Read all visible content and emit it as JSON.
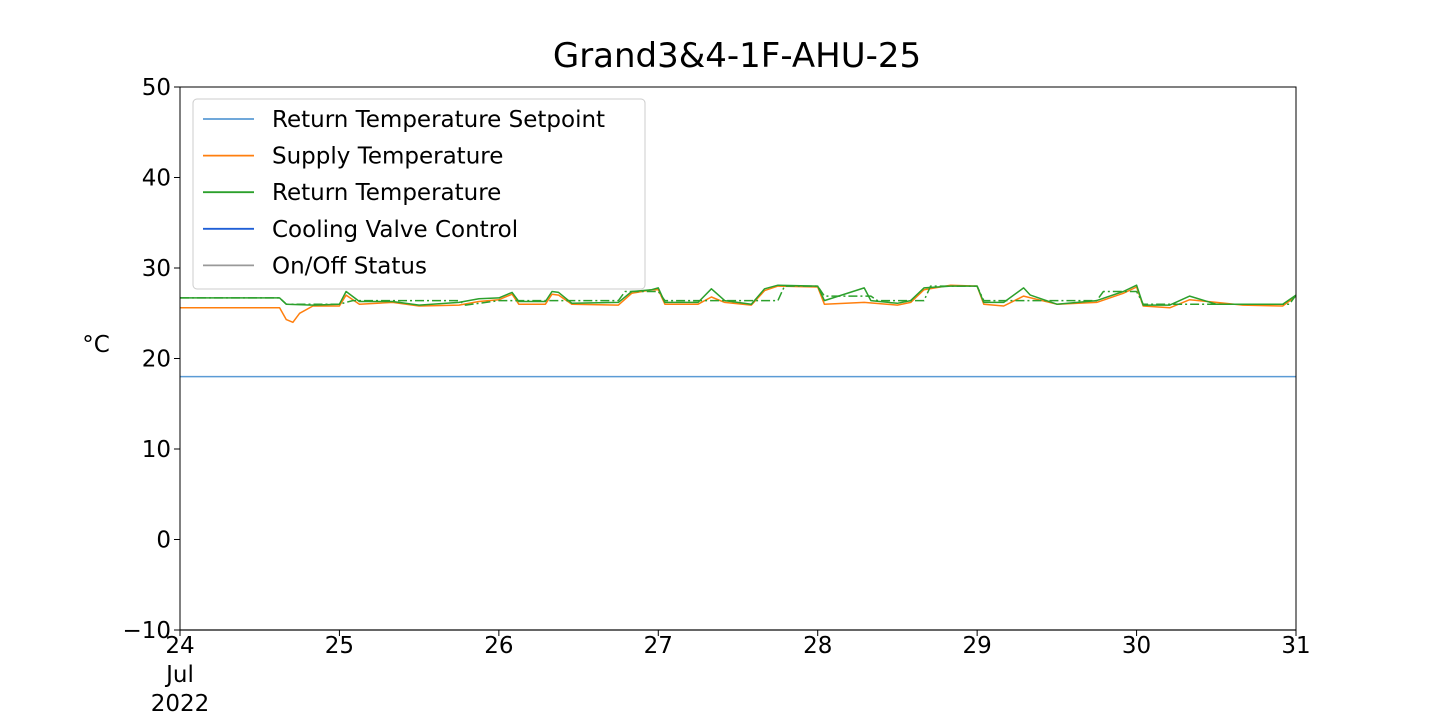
{
  "chart_data": {
    "type": "line",
    "title": "Grand3&4-1F-AHU-25",
    "ylabel": "°C",
    "xlabel": "",
    "ylim": [
      -10,
      50
    ],
    "xlim": [
      "2022-07-24",
      "2022-07-31"
    ],
    "grid": false,
    "legend_position": "top-left",
    "yticks": [
      {
        "value": -10,
        "label": "−10"
      },
      {
        "value": 0,
        "label": "0"
      },
      {
        "value": 10,
        "label": "10"
      },
      {
        "value": 20,
        "label": "20"
      },
      {
        "value": 30,
        "label": "30"
      },
      {
        "value": 40,
        "label": "40"
      },
      {
        "value": 50,
        "label": "50"
      }
    ],
    "xticks": [
      {
        "date": "2022-07-24",
        "day": "24",
        "month": "Jul",
        "year": "2022"
      },
      {
        "date": "2022-07-25",
        "day": "25"
      },
      {
        "date": "2022-07-26",
        "day": "26"
      },
      {
        "date": "2022-07-27",
        "day": "27"
      },
      {
        "date": "2022-07-28",
        "day": "28"
      },
      {
        "date": "2022-07-29",
        "day": "29"
      },
      {
        "date": "2022-07-30",
        "day": "30"
      },
      {
        "date": "2022-07-31",
        "day": "31"
      }
    ],
    "series": [
      {
        "name": "Return Temperature Setpoint",
        "color": "#5b9bd5",
        "style": "solid",
        "points": [
          [
            "2022-07-24 00:00",
            18.0
          ],
          [
            "2022-07-31 00:00",
            18.0
          ]
        ]
      },
      {
        "name": "Supply Temperature",
        "color": "#ff7f0e",
        "style": "solid",
        "points": [
          [
            "2022-07-24 00:00",
            25.6
          ],
          [
            "2022-07-24 15:00",
            25.6
          ],
          [
            "2022-07-24 16:00",
            24.3
          ],
          [
            "2022-07-24 17:00",
            24.0
          ],
          [
            "2022-07-24 18:00",
            25.0
          ],
          [
            "2022-07-24 20:00",
            25.8
          ],
          [
            "2022-07-25 00:00",
            25.8
          ],
          [
            "2022-07-25 01:00",
            27.0
          ],
          [
            "2022-07-25 03:00",
            26.0
          ],
          [
            "2022-07-25 08:00",
            26.2
          ],
          [
            "2022-07-25 12:00",
            25.8
          ],
          [
            "2022-07-25 18:00",
            25.9
          ],
          [
            "2022-07-25 21:00",
            26.3
          ],
          [
            "2022-07-26 00:00",
            26.5
          ],
          [
            "2022-07-26 02:00",
            27.1
          ],
          [
            "2022-07-26 03:00",
            26.0
          ],
          [
            "2022-07-26 07:00",
            26.0
          ],
          [
            "2022-07-26 08:00",
            27.1
          ],
          [
            "2022-07-26 09:00",
            27.0
          ],
          [
            "2022-07-26 11:00",
            26.0
          ],
          [
            "2022-07-26 18:00",
            25.9
          ],
          [
            "2022-07-26 20:00",
            27.2
          ],
          [
            "2022-07-26 23:00",
            27.6
          ],
          [
            "2022-07-27 00:00",
            27.6
          ],
          [
            "2022-07-27 01:00",
            26.0
          ],
          [
            "2022-07-27 06:00",
            26.0
          ],
          [
            "2022-07-27 08:00",
            26.8
          ],
          [
            "2022-07-27 10:00",
            26.2
          ],
          [
            "2022-07-27 14:00",
            25.9
          ],
          [
            "2022-07-27 16:00",
            27.5
          ],
          [
            "2022-07-27 18:00",
            28.0
          ],
          [
            "2022-07-28 00:00",
            27.9
          ],
          [
            "2022-07-28 01:00",
            26.0
          ],
          [
            "2022-07-28 07:00",
            26.2
          ],
          [
            "2022-07-28 12:00",
            25.9
          ],
          [
            "2022-07-28 14:00",
            26.2
          ],
          [
            "2022-07-28 16:00",
            27.6
          ],
          [
            "2022-07-28 20:00",
            28.1
          ],
          [
            "2022-07-29 00:00",
            28.0
          ],
          [
            "2022-07-29 01:00",
            26.0
          ],
          [
            "2022-07-29 04:00",
            25.8
          ],
          [
            "2022-07-29 07:00",
            26.9
          ],
          [
            "2022-07-29 12:00",
            26.0
          ],
          [
            "2022-07-29 18:00",
            26.2
          ],
          [
            "2022-07-29 22:00",
            27.2
          ],
          [
            "2022-07-30 00:00",
            27.9
          ],
          [
            "2022-07-30 01:00",
            25.8
          ],
          [
            "2022-07-30 05:00",
            25.6
          ],
          [
            "2022-07-30 08:00",
            26.5
          ],
          [
            "2022-07-30 12:00",
            26.2
          ],
          [
            "2022-07-30 16:00",
            25.9
          ],
          [
            "2022-07-30 22:00",
            25.8
          ],
          [
            "2022-07-31 00:00",
            26.9
          ]
        ]
      },
      {
        "name": "Return Temperature",
        "color": "#2ca02c",
        "style": "solid",
        "points": [
          [
            "2022-07-24 00:00",
            26.7
          ],
          [
            "2022-07-24 15:00",
            26.7
          ],
          [
            "2022-07-24 16:00",
            26.0
          ],
          [
            "2022-07-24 20:00",
            25.9
          ],
          [
            "2022-07-25 00:00",
            26.0
          ],
          [
            "2022-07-25 01:00",
            27.4
          ],
          [
            "2022-07-25 03:00",
            26.3
          ],
          [
            "2022-07-25 08:00",
            26.3
          ],
          [
            "2022-07-25 12:00",
            25.9
          ],
          [
            "2022-07-25 18:00",
            26.2
          ],
          [
            "2022-07-25 21:00",
            26.6
          ],
          [
            "2022-07-26 00:00",
            26.7
          ],
          [
            "2022-07-26 02:00",
            27.3
          ],
          [
            "2022-07-26 03:00",
            26.3
          ],
          [
            "2022-07-26 07:00",
            26.3
          ],
          [
            "2022-07-26 08:00",
            27.4
          ],
          [
            "2022-07-26 09:00",
            27.3
          ],
          [
            "2022-07-26 11:00",
            26.1
          ],
          [
            "2022-07-26 18:00",
            26.2
          ],
          [
            "2022-07-26 20:00",
            27.4
          ],
          [
            "2022-07-26 23:00",
            27.6
          ],
          [
            "2022-07-27 00:00",
            27.8
          ],
          [
            "2022-07-27 01:00",
            26.2
          ],
          [
            "2022-07-27 06:00",
            26.2
          ],
          [
            "2022-07-27 08:00",
            27.7
          ],
          [
            "2022-07-27 10:00",
            26.4
          ],
          [
            "2022-07-27 14:00",
            26.0
          ],
          [
            "2022-07-27 16:00",
            27.7
          ],
          [
            "2022-07-27 18:00",
            28.1
          ],
          [
            "2022-07-28 00:00",
            28.0
          ],
          [
            "2022-07-28 01:00",
            26.4
          ],
          [
            "2022-07-28 07:00",
            27.8
          ],
          [
            "2022-07-28 08:00",
            26.4
          ],
          [
            "2022-07-28 12:00",
            26.1
          ],
          [
            "2022-07-28 14:00",
            26.4
          ],
          [
            "2022-07-28 16:00",
            27.8
          ],
          [
            "2022-07-28 20:00",
            28.0
          ],
          [
            "2022-07-29 00:00",
            28.0
          ],
          [
            "2022-07-29 01:00",
            26.2
          ],
          [
            "2022-07-29 04:00",
            26.2
          ],
          [
            "2022-07-29 07:00",
            27.8
          ],
          [
            "2022-07-29 08:00",
            27.0
          ],
          [
            "2022-07-29 12:00",
            26.0
          ],
          [
            "2022-07-29 18:00",
            26.4
          ],
          [
            "2022-07-29 22:00",
            27.4
          ],
          [
            "2022-07-30 00:00",
            28.1
          ],
          [
            "2022-07-30 01:00",
            25.9
          ],
          [
            "2022-07-30 05:00",
            25.9
          ],
          [
            "2022-07-30 08:00",
            26.9
          ],
          [
            "2022-07-30 12:00",
            26.0
          ],
          [
            "2022-07-30 16:00",
            26.0
          ],
          [
            "2022-07-30 22:00",
            26.0
          ],
          [
            "2022-07-31 00:00",
            27.0
          ]
        ]
      },
      {
        "name": "Return Temperature Setpoint (dashed)",
        "legend": false,
        "color": "#2ca02c",
        "style": "dashdot",
        "points": [
          [
            "2022-07-24 00:00",
            26.7
          ],
          [
            "2022-07-24 15:00",
            26.7
          ],
          [
            "2022-07-24 16:00",
            26.0
          ],
          [
            "2022-07-25 00:00",
            26.0
          ],
          [
            "2022-07-25 02:00",
            26.4
          ],
          [
            "2022-07-25 18:00",
            26.4
          ],
          [
            "2022-07-25 19:00",
            25.9
          ],
          [
            "2022-07-26 00:00",
            26.4
          ],
          [
            "2022-07-26 18:00",
            26.4
          ],
          [
            "2022-07-26 19:00",
            27.4
          ],
          [
            "2022-07-27 00:00",
            27.4
          ],
          [
            "2022-07-27 01:00",
            26.4
          ],
          [
            "2022-07-27 18:00",
            26.4
          ],
          [
            "2022-07-27 19:00",
            28.0
          ],
          [
            "2022-07-28 00:00",
            28.0
          ],
          [
            "2022-07-28 01:00",
            26.9
          ],
          [
            "2022-07-28 08:00",
            26.9
          ],
          [
            "2022-07-28 09:00",
            26.4
          ],
          [
            "2022-07-28 16:00",
            26.4
          ],
          [
            "2022-07-28 17:00",
            28.0
          ],
          [
            "2022-07-29 00:00",
            28.0
          ],
          [
            "2022-07-29 01:00",
            26.4
          ],
          [
            "2022-07-29 18:00",
            26.4
          ],
          [
            "2022-07-29 19:00",
            27.4
          ],
          [
            "2022-07-30 00:00",
            27.4
          ],
          [
            "2022-07-30 01:00",
            26.0
          ],
          [
            "2022-07-30 23:00",
            26.0
          ],
          [
            "2022-07-31 00:00",
            27.0
          ]
        ]
      },
      {
        "name": "Cooling Valve Control",
        "color": "#1f5fd6",
        "style": "solid",
        "points": []
      },
      {
        "name": "On/Off Status",
        "color": "#999999",
        "style": "solid",
        "points": [
          [
            "2022-07-24 00:00",
            -10.0
          ],
          [
            "2022-07-31 00:00",
            -10.0
          ]
        ]
      }
    ],
    "legend_entries": [
      "Return Temperature Setpoint",
      "Supply Temperature",
      "Return Temperature",
      "Cooling Valve Control",
      "On/Off Status"
    ]
  }
}
